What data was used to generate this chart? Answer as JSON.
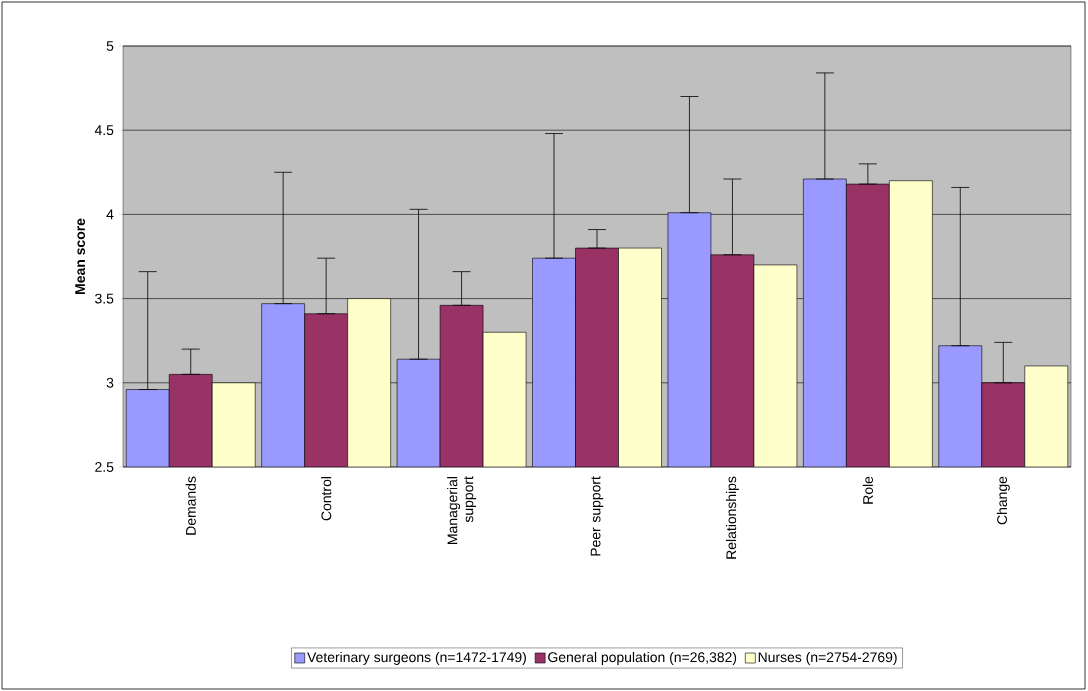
{
  "chart_data": {
    "type": "bar",
    "ylabel": "Mean score",
    "categories": [
      "Demands",
      "Control",
      "Managerial support",
      "Peer support",
      "Relationships",
      "Role",
      "Change"
    ],
    "series": [
      {
        "name": "Veterinary surgeons (n=1472-1749)",
        "color": "#9999ff",
        "values": [
          2.96,
          3.47,
          3.14,
          3.74,
          4.01,
          4.21,
          3.22
        ],
        "errors": [
          [
            2.96,
            3.66
          ],
          [
            3.47,
            4.25
          ],
          [
            3.14,
            4.03
          ],
          [
            3.74,
            4.48
          ],
          [
            4.01,
            4.7
          ],
          [
            4.21,
            4.84
          ],
          [
            3.22,
            4.16
          ]
        ]
      },
      {
        "name": "General population (n=26,382)",
        "color": "#993366",
        "values": [
          3.05,
          3.41,
          3.46,
          3.8,
          3.76,
          4.18,
          3.0
        ],
        "errors": [
          [
            3.05,
            3.2
          ],
          [
            3.41,
            3.74
          ],
          [
            3.46,
            3.66
          ],
          [
            3.8,
            3.91
          ],
          [
            3.76,
            4.21
          ],
          [
            4.18,
            4.3
          ],
          [
            3.0,
            3.24
          ]
        ]
      },
      {
        "name": "Nurses (n=2754-2769)",
        "color": "#ffffcc",
        "values": [
          3.0,
          3.5,
          3.3,
          3.8,
          3.7,
          4.2,
          3.1
        ]
      }
    ],
    "ylim": [
      2.5,
      5
    ],
    "yticks": [
      2.5,
      3,
      3.5,
      4,
      4.5,
      5
    ],
    "grid": "y",
    "legend": "bottom"
  }
}
